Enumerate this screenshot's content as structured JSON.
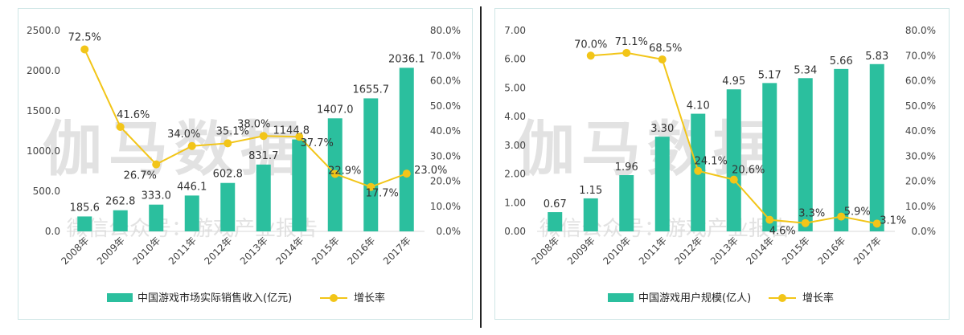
{
  "colors": {
    "bar": "#2bbf9e",
    "line": "#f2c518",
    "axis_text": "#444444",
    "label_text": "#333333"
  },
  "watermark": {
    "main": "伽马数据",
    "sub": "微信公众号：游戏产业报告"
  },
  "chart_data": [
    {
      "type": "bar",
      "categories": [
        "2008年",
        "2009年",
        "2010年",
        "2011年",
        "2012年",
        "2013年",
        "2014年",
        "2015年",
        "2016年",
        "2017年"
      ],
      "series": [
        {
          "name": "中国游戏市场实际销售收入(亿元)",
          "type": "bar",
          "axis": "left",
          "values": [
            185.6,
            262.8,
            333.0,
            446.1,
            602.8,
            831.7,
            1144.8,
            1407.0,
            1655.7,
            2036.1
          ],
          "labels": [
            "185.6",
            "262.8",
            "333.0",
            "446.1",
            "602.8",
            "831.7",
            "1144.8",
            "1407.0",
            "1655.7",
            "2036.1"
          ]
        },
        {
          "name": "增长率",
          "type": "line",
          "axis": "right",
          "values": [
            72.5,
            41.6,
            26.7,
            34.0,
            35.1,
            38.0,
            37.7,
            22.9,
            17.7,
            23.0
          ],
          "labels": [
            "72.5%",
            "41.6%",
            "26.7%",
            "34.0%",
            "35.1%",
            "38.0%",
            "37.7%",
            "22.9%",
            "17.7%",
            "23.0%"
          ]
        }
      ],
      "y_left": {
        "min": 0,
        "max": 2500,
        "ticks": [
          "0.0",
          "500.0",
          "1000.0",
          "1500.0",
          "2000.0",
          "2500.0"
        ]
      },
      "y_right": {
        "min": 0,
        "max": 80,
        "ticks": [
          "0.0%",
          "10.0%",
          "20.0%",
          "30.0%",
          "40.0%",
          "50.0%",
          "60.0%",
          "70.0%",
          "80.0%"
        ]
      },
      "legend": {
        "position": "bottom",
        "bar_label": "中国游戏市场实际销售收入(亿元)",
        "line_label": "增长率"
      },
      "grid": false
    },
    {
      "type": "bar",
      "categories": [
        "2008年",
        "2009年",
        "2010年",
        "2011年",
        "2012年",
        "2013年",
        "2014年",
        "2015年",
        "2016年",
        "2017年"
      ],
      "series": [
        {
          "name": "中国游戏用户规模(亿人)",
          "type": "bar",
          "axis": "left",
          "values": [
            0.67,
            1.15,
            1.96,
            3.3,
            4.1,
            4.95,
            5.17,
            5.34,
            5.66,
            5.83
          ],
          "labels": [
            "0.67",
            "1.15",
            "1.96",
            "3.30",
            "4.10",
            "4.95",
            "5.17",
            "5.34",
            "5.66",
            "5.83"
          ]
        },
        {
          "name": "增长率",
          "type": "line",
          "axis": "right",
          "values": [
            null,
            70.0,
            71.1,
            68.5,
            24.1,
            20.6,
            4.6,
            3.3,
            5.9,
            3.1
          ],
          "labels": [
            null,
            "70.0%",
            "71.1%",
            "68.5%",
            "24.1%",
            "20.6%",
            "4.6%",
            "3.3%",
            "5.9%",
            "3.1%"
          ]
        }
      ],
      "y_left": {
        "min": 0,
        "max": 7,
        "ticks": [
          "0.00",
          "1.00",
          "2.00",
          "3.00",
          "4.00",
          "5.00",
          "6.00",
          "7.00"
        ]
      },
      "y_right": {
        "min": 0,
        "max": 80,
        "ticks": [
          "0.0%",
          "10.0%",
          "20.0%",
          "30.0%",
          "40.0%",
          "50.0%",
          "60.0%",
          "70.0%",
          "80.0%"
        ]
      },
      "legend": {
        "position": "bottom",
        "bar_label": "中国游戏用户规模(亿人)",
        "line_label": "增长率"
      },
      "grid": false
    }
  ]
}
